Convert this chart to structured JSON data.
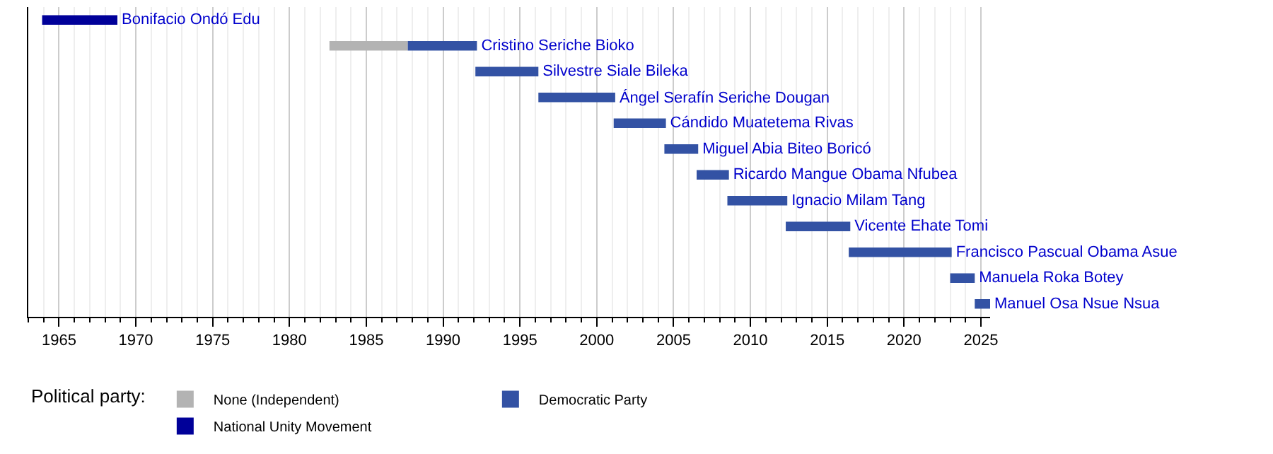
{
  "chart_data": {
    "type": "bar",
    "orientation": "horizontal",
    "categories": [
      null,
      null,
      null,
      null,
      null,
      null,
      null,
      null,
      null,
      null,
      null,
      null
    ],
    "series": [
      {
        "name": "None (Independent)",
        "color": "#b3b3b3",
        "base": [
          null,
          1982.6,
          null,
          null,
          null,
          null,
          null,
          null,
          null,
          null,
          null,
          null
        ],
        "values": [
          null,
          5.1,
          null,
          null,
          null,
          null,
          null,
          null,
          null,
          null,
          null,
          null
        ],
        "value_labels": [
          null,
          null,
          null,
          null,
          null,
          null,
          null,
          null,
          null,
          null,
          null,
          null
        ]
      },
      {
        "name": "Democratic Party",
        "color": "#3352a4",
        "base": [
          null,
          1987.7,
          1992.1,
          1996.2,
          2001.1,
          2004.4,
          2006.5,
          2008.5,
          2012.3,
          2016.4,
          2023.0,
          2024.6
        ],
        "values": [
          null,
          4.5,
          4.1,
          5.0,
          3.4,
          2.2,
          2.1,
          3.9,
          4.2,
          6.7,
          1.6,
          1.0
        ],
        "value_labels": [
          null,
          "Cristino Seriche Bioko",
          "Silvestre Siale Bileka",
          "Ángel Serafín Seriche Dougan",
          "Cándido Muatetema Rivas",
          "Miguel Abia Biteo Boricó",
          "Ricardo Mangue Obama Nfubea",
          "Ignacio Milam Tang",
          "Vicente Ehate Tomi",
          "Francisco Pascual Obama Asue",
          "Manuela Roka Botey",
          "Manuel Osa Nsue Nsua"
        ]
      },
      {
        "name": "National Unity Movement",
        "color": "#000099",
        "base": [
          1963.9,
          null,
          null,
          null,
          null,
          null,
          null,
          null,
          null,
          null,
          null,
          null
        ],
        "values": [
          4.9,
          null,
          null,
          null,
          null,
          null,
          null,
          null,
          null,
          null,
          null,
          null
        ],
        "value_labels": [
          "Bonifacio Ondó Edu",
          null,
          null,
          null,
          null,
          null,
          null,
          null,
          null,
          null,
          null,
          null
        ]
      }
    ],
    "legend_title": "Political party:",
    "legend": "bottom",
    "xlim": [
      1963,
      2025.6
    ],
    "xticks": [
      1965,
      1970,
      1975,
      1980,
      1985,
      1990,
      1995,
      2000,
      2005,
      2010,
      2015,
      2020,
      2025
    ],
    "grid": "x",
    "tick_labels": "x"
  }
}
